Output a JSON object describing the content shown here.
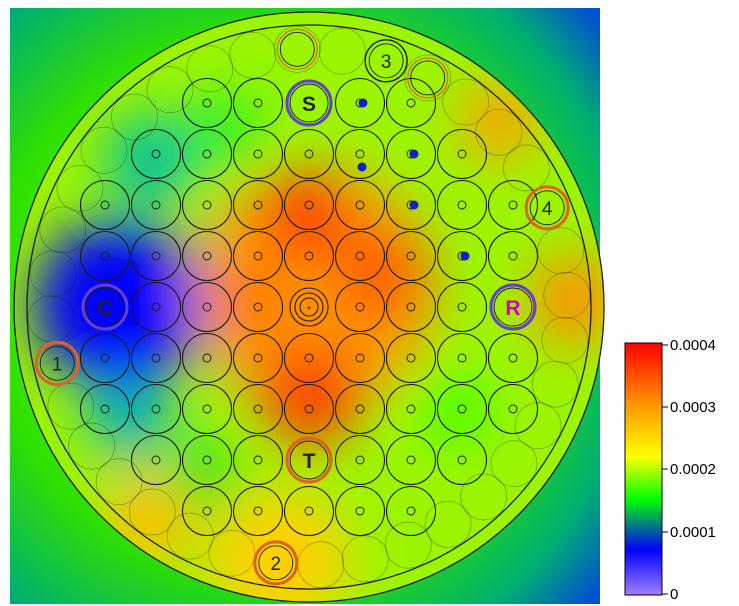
{
  "colors": {
    "background_field": "#1f9f4a",
    "outline": "#1a1a1a",
    "hot": "#ff2a00",
    "warm": "#ff9a00",
    "mid": "#ffff00",
    "cool": "#00ff00",
    "cold": "#0000ff",
    "min": "#9f7fff",
    "ring_orange": "#e0602a",
    "ring_purple": "#6040d0",
    "dot_blue": "#1020d0"
  },
  "map": {
    "special_markers": [
      {
        "label": "S",
        "ring": "purple"
      },
      {
        "label": "C",
        "ring": "purple"
      },
      {
        "label": "R",
        "ring": "purple"
      },
      {
        "label": "T",
        "ring": "orange"
      },
      {
        "label": "1",
        "ring": "orange"
      },
      {
        "label": "2",
        "ring": "orange"
      },
      {
        "label": "3",
        "ring": "black"
      },
      {
        "label": "4",
        "ring": "orange"
      }
    ]
  },
  "colorbar": {
    "ticks": [
      "0.0004",
      "0.0003",
      "0.0002",
      "0.0001",
      "0"
    ],
    "colormap_stops": [
      "#ff0000",
      "#ff9a00",
      "#ffff00",
      "#00ff00",
      "#0000ff",
      "#a080ff"
    ]
  }
}
